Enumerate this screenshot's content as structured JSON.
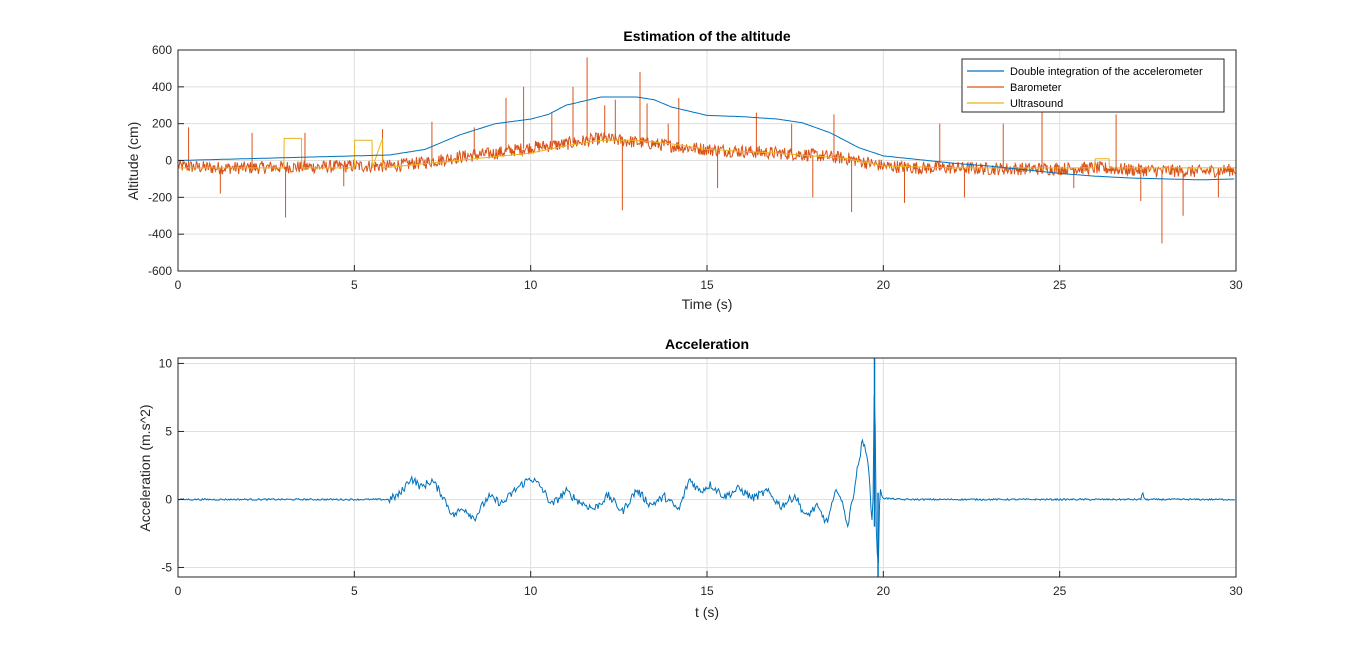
{
  "chart_data": [
    {
      "type": "line",
      "title": "Estimation of the altitude",
      "xlabel": "Time (s)",
      "ylabel": "Altitude (cm)",
      "xlim": [
        0,
        30
      ],
      "ylim": [
        -600,
        600
      ],
      "xticks": [
        0,
        5,
        10,
        15,
        20,
        25,
        30
      ],
      "yticks": [
        600,
        400,
        200,
        0,
        -200,
        -400,
        -600
      ],
      "grid": true,
      "legend_position": "top-right",
      "series": [
        {
          "name": "Double integration of the accelerometer",
          "color": "#0072BD",
          "x": [
            0,
            2,
            4,
            6,
            7,
            8,
            9,
            10,
            10.5,
            11,
            12,
            13,
            13.5,
            14,
            15,
            16,
            17,
            17.7,
            18.5,
            19.3,
            20,
            21,
            22,
            23,
            24,
            25,
            26,
            27,
            28,
            29,
            30
          ],
          "y": [
            0,
            10,
            20,
            30,
            60,
            140,
            200,
            225,
            250,
            300,
            345,
            345,
            330,
            290,
            245,
            238,
            225,
            205,
            150,
            70,
            25,
            5,
            -15,
            -30,
            -50,
            -70,
            -85,
            -95,
            -100,
            -105,
            -100
          ]
        },
        {
          "name": "Barometer",
          "color": "#D95319",
          "x": [
            0,
            1,
            2,
            3,
            4,
            5,
            6,
            7,
            8,
            9,
            10,
            11,
            12,
            13,
            14,
            15,
            16,
            17,
            18,
            19,
            20,
            21,
            22,
            23,
            24,
            25,
            26,
            27,
            28,
            29,
            30
          ],
          "y": [
            -30,
            -40,
            -40,
            -35,
            -35,
            -30,
            -30,
            -10,
            20,
            40,
            70,
            90,
            120,
            100,
            80,
            60,
            50,
            40,
            30,
            10,
            -30,
            -40,
            -40,
            -45,
            -45,
            -45,
            -40,
            -50,
            -55,
            -60,
            -50
          ]
        },
        {
          "name": "Ultrasound",
          "color": "#EDB120",
          "x": [
            0,
            3,
            3.01,
            3.5,
            3.51,
            5,
            5.01,
            5.5,
            5.51,
            5.8,
            5.81,
            10,
            11,
            12,
            13,
            14,
            15,
            17,
            19,
            20,
            22,
            24,
            25,
            26,
            26.01,
            26.4,
            26.41,
            28,
            30
          ],
          "y": [
            -40,
            -40,
            120,
            120,
            -40,
            -40,
            110,
            110,
            -40,
            120,
            -40,
            40,
            80,
            110,
            110,
            90,
            60,
            40,
            10,
            -30,
            -40,
            -40,
            -40,
            -40,
            10,
            10,
            -40,
            -40,
            -40
          ]
        }
      ],
      "barometer_spikes": {
        "x": [
          0.3,
          1.2,
          2.1,
          3.05,
          3.6,
          4.7,
          5.8,
          7.2,
          8.4,
          9.3,
          9.8,
          10.6,
          11.2,
          11.6,
          12.1,
          12.4,
          12.6,
          13.1,
          13.3,
          13.9,
          14.2,
          15.3,
          16.4,
          17.4,
          18.0,
          18.6,
          19.1,
          20.6,
          21.6,
          22.3,
          23.4,
          24.5,
          25.4,
          26.6,
          27.3,
          27.9,
          28.5,
          29.5
        ],
        "y": [
          180,
          -180,
          150,
          -310,
          150,
          -140,
          170,
          210,
          180,
          340,
          400,
          260,
          400,
          560,
          300,
          330,
          -270,
          480,
          310,
          200,
          340,
          -150,
          260,
          200,
          -200,
          250,
          -280,
          -230,
          200,
          -200,
          200,
          380,
          -150,
          250,
          -220,
          -450,
          -300,
          -200
        ]
      }
    },
    {
      "type": "line",
      "title": "Acceleration",
      "xlabel": "t (s)",
      "ylabel": "Acceleration (m.s^2)",
      "xlim": [
        0,
        30
      ],
      "ylim": [
        -5.7,
        10.4
      ],
      "xticks": [
        0,
        5,
        10,
        15,
        20,
        25,
        30
      ],
      "yticks": [
        10,
        5,
        0,
        -5
      ],
      "grid": true,
      "series": [
        {
          "name": "",
          "color": "#0072BD",
          "x": [
            0,
            6,
            6.3,
            6.6,
            6.9,
            7.2,
            7.5,
            7.8,
            8.1,
            8.4,
            8.8,
            9.2,
            9.6,
            10,
            10.3,
            10.6,
            11,
            11.4,
            11.8,
            12.2,
            12.6,
            13,
            13.4,
            13.8,
            14.2,
            14.5,
            14.8,
            15.1,
            15.5,
            15.9,
            16.3,
            16.7,
            17.1,
            17.5,
            17.8,
            18.1,
            18.4,
            18.7,
            19.0,
            19.2,
            19.4,
            19.55,
            19.7,
            19.75,
            19.8,
            19.85,
            19.9,
            20.0,
            20.5,
            25,
            27.3,
            27.35,
            27.4,
            30
          ],
          "y": [
            0,
            0,
            0.4,
            1.6,
            0.9,
            1.4,
            0.3,
            -1.2,
            -0.6,
            -1.4,
            0.2,
            -0.3,
            0.8,
            1.6,
            0.9,
            -0.4,
            0.6,
            -0.2,
            -0.7,
            0.3,
            -0.9,
            0.7,
            -0.4,
            0.2,
            -0.8,
            1.5,
            0.6,
            1.1,
            0.2,
            0.8,
            0.1,
            0.6,
            -0.5,
            0.3,
            -1.3,
            -0.5,
            -1.7,
            0.9,
            -1.9,
            1.2,
            4.2,
            3.4,
            -2.4,
            10.4,
            -2.0,
            -5.7,
            0.6,
            0.1,
            0,
            0,
            0,
            0.6,
            0,
            0
          ]
        }
      ]
    }
  ]
}
